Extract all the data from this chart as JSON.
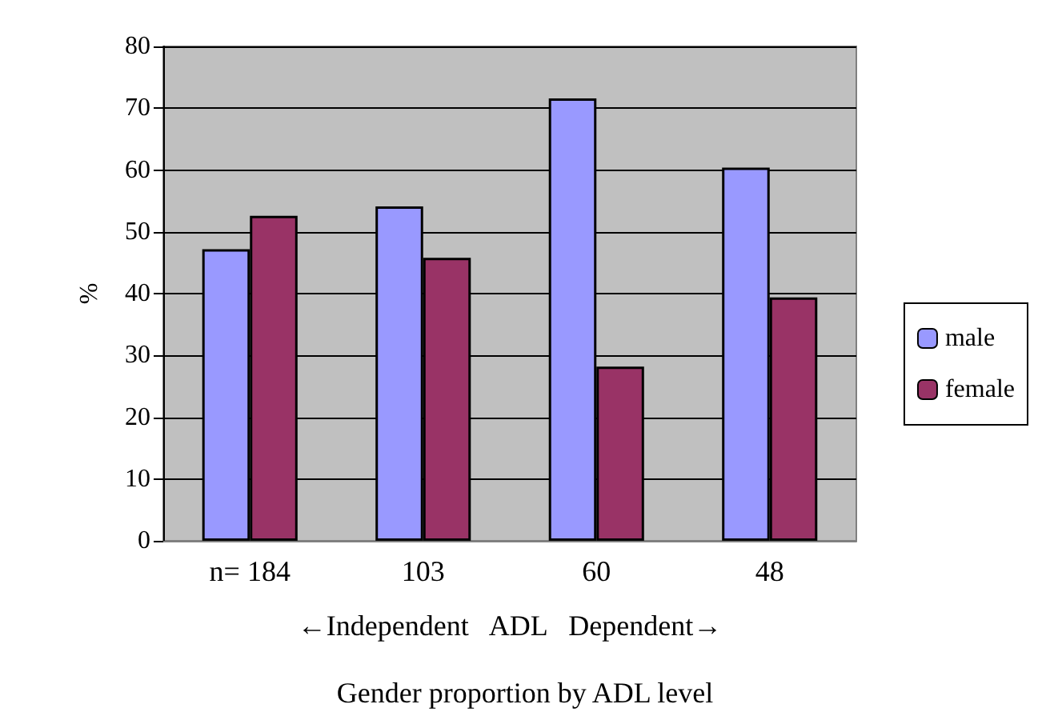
{
  "chart_data": {
    "type": "bar",
    "title": "Gender proportion by ADL level",
    "xlabel": "←Independent   ADL   Dependent→",
    "ylabel": "%",
    "categories": [
      "n= 184",
      "103",
      "60",
      "48"
    ],
    "series": [
      {
        "name": "male",
        "color": "#9999ff",
        "values": [
          47.2,
          54.1,
          71.6,
          60.4
        ]
      },
      {
        "name": "female",
        "color": "#993366",
        "values": [
          52.6,
          45.8,
          28.2,
          39.4
        ]
      }
    ],
    "ylim": [
      0,
      80
    ],
    "yticks": [
      0,
      10,
      20,
      30,
      40,
      50,
      60,
      70,
      80
    ],
    "grid": "y",
    "legend": "right"
  }
}
